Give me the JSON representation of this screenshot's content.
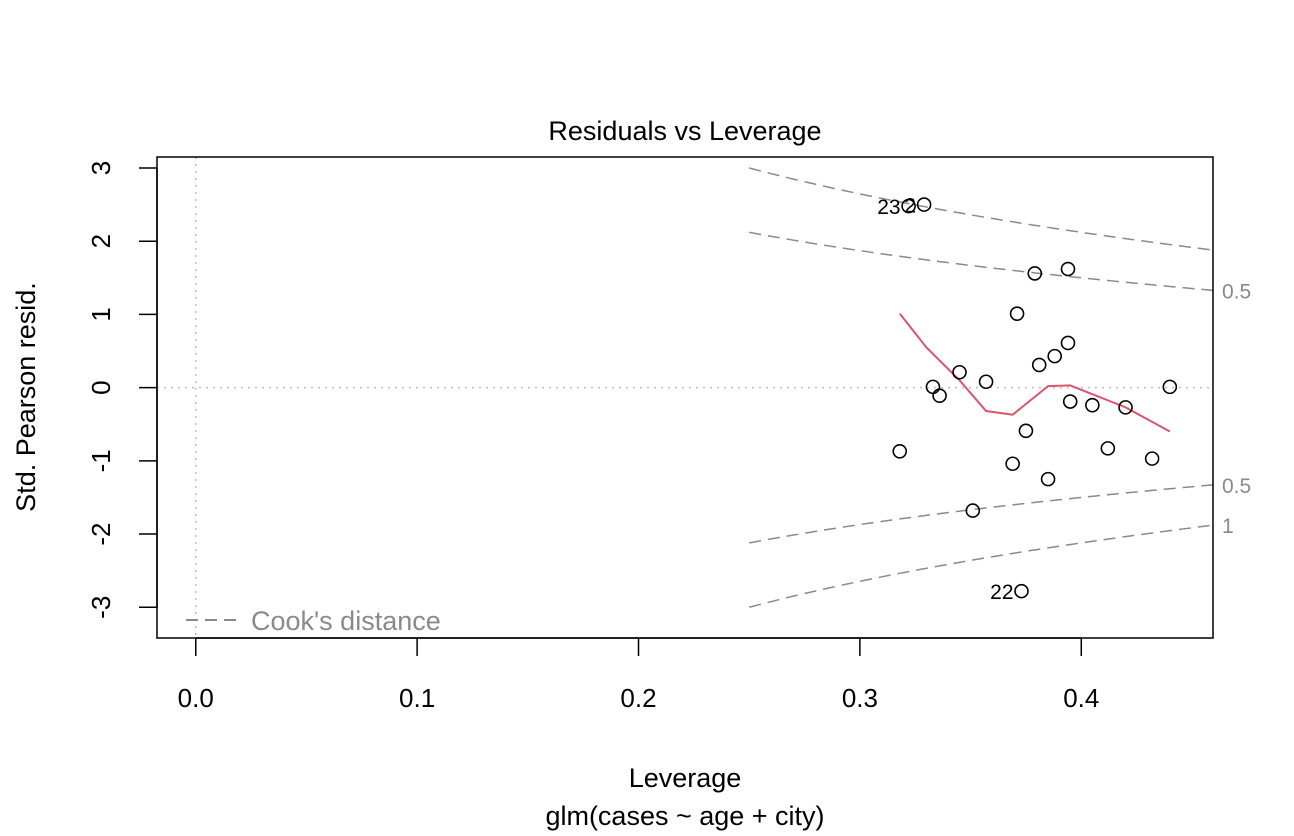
{
  "chart_data": {
    "type": "scatter",
    "title": "Residuals vs Leverage",
    "xlabel": "Leverage",
    "subtitle": "glm(cases ~ age + city)",
    "ylabel": "Std. Pearson resid.",
    "xlim": [
      -0.0175,
      0.4595
    ],
    "ylim": [
      -3.42,
      3.15
    ],
    "x_ticks": [
      "0.0",
      "0.1",
      "0.2",
      "0.3",
      "0.4"
    ],
    "y_ticks": [
      "-3",
      "-2",
      "-1",
      "0",
      "1",
      "2",
      "3"
    ],
    "points": [
      {
        "x": 0.322,
        "y": 2.48,
        "label": "23"
      },
      {
        "x": 0.329,
        "y": 2.5,
        "label": "2"
      },
      {
        "x": 0.394,
        "y": 1.62
      },
      {
        "x": 0.379,
        "y": 1.56
      },
      {
        "x": 0.371,
        "y": 1.01
      },
      {
        "x": 0.394,
        "y": 0.61
      },
      {
        "x": 0.388,
        "y": 0.43
      },
      {
        "x": 0.381,
        "y": 0.31
      },
      {
        "x": 0.345,
        "y": 0.21
      },
      {
        "x": 0.357,
        "y": 0.08
      },
      {
        "x": 0.333,
        "y": 0.01
      },
      {
        "x": 0.336,
        "y": -0.11
      },
      {
        "x": 0.395,
        "y": -0.19
      },
      {
        "x": 0.405,
        "y": -0.24
      },
      {
        "x": 0.42,
        "y": -0.27
      },
      {
        "x": 0.44,
        "y": 0.01
      },
      {
        "x": 0.375,
        "y": -0.59
      },
      {
        "x": 0.318,
        "y": -0.87
      },
      {
        "x": 0.412,
        "y": -0.83
      },
      {
        "x": 0.432,
        "y": -0.97
      },
      {
        "x": 0.369,
        "y": -1.04
      },
      {
        "x": 0.385,
        "y": -1.25
      },
      {
        "x": 0.351,
        "y": -1.68
      },
      {
        "x": 0.373,
        "y": -2.78,
        "label": "22"
      }
    ],
    "smooth": {
      "color": "#DF536B",
      "x": [
        0.318,
        0.33,
        0.345,
        0.357,
        0.369,
        0.385,
        0.395,
        0.42,
        0.44
      ],
      "y": [
        1.01,
        0.55,
        0.1,
        -0.32,
        -0.37,
        0.02,
        0.03,
        -0.27,
        -0.6
      ]
    },
    "reference_lines": {
      "h": 0,
      "v": 0,
      "style": "dotted",
      "color": "#bebebe"
    },
    "cooks_contours": {
      "color": "#8a8a8a",
      "levels": [
        0.5,
        1
      ],
      "level_labels": [
        "0.5",
        "0.5",
        "1"
      ],
      "legend": "Cook's distance"
    }
  }
}
